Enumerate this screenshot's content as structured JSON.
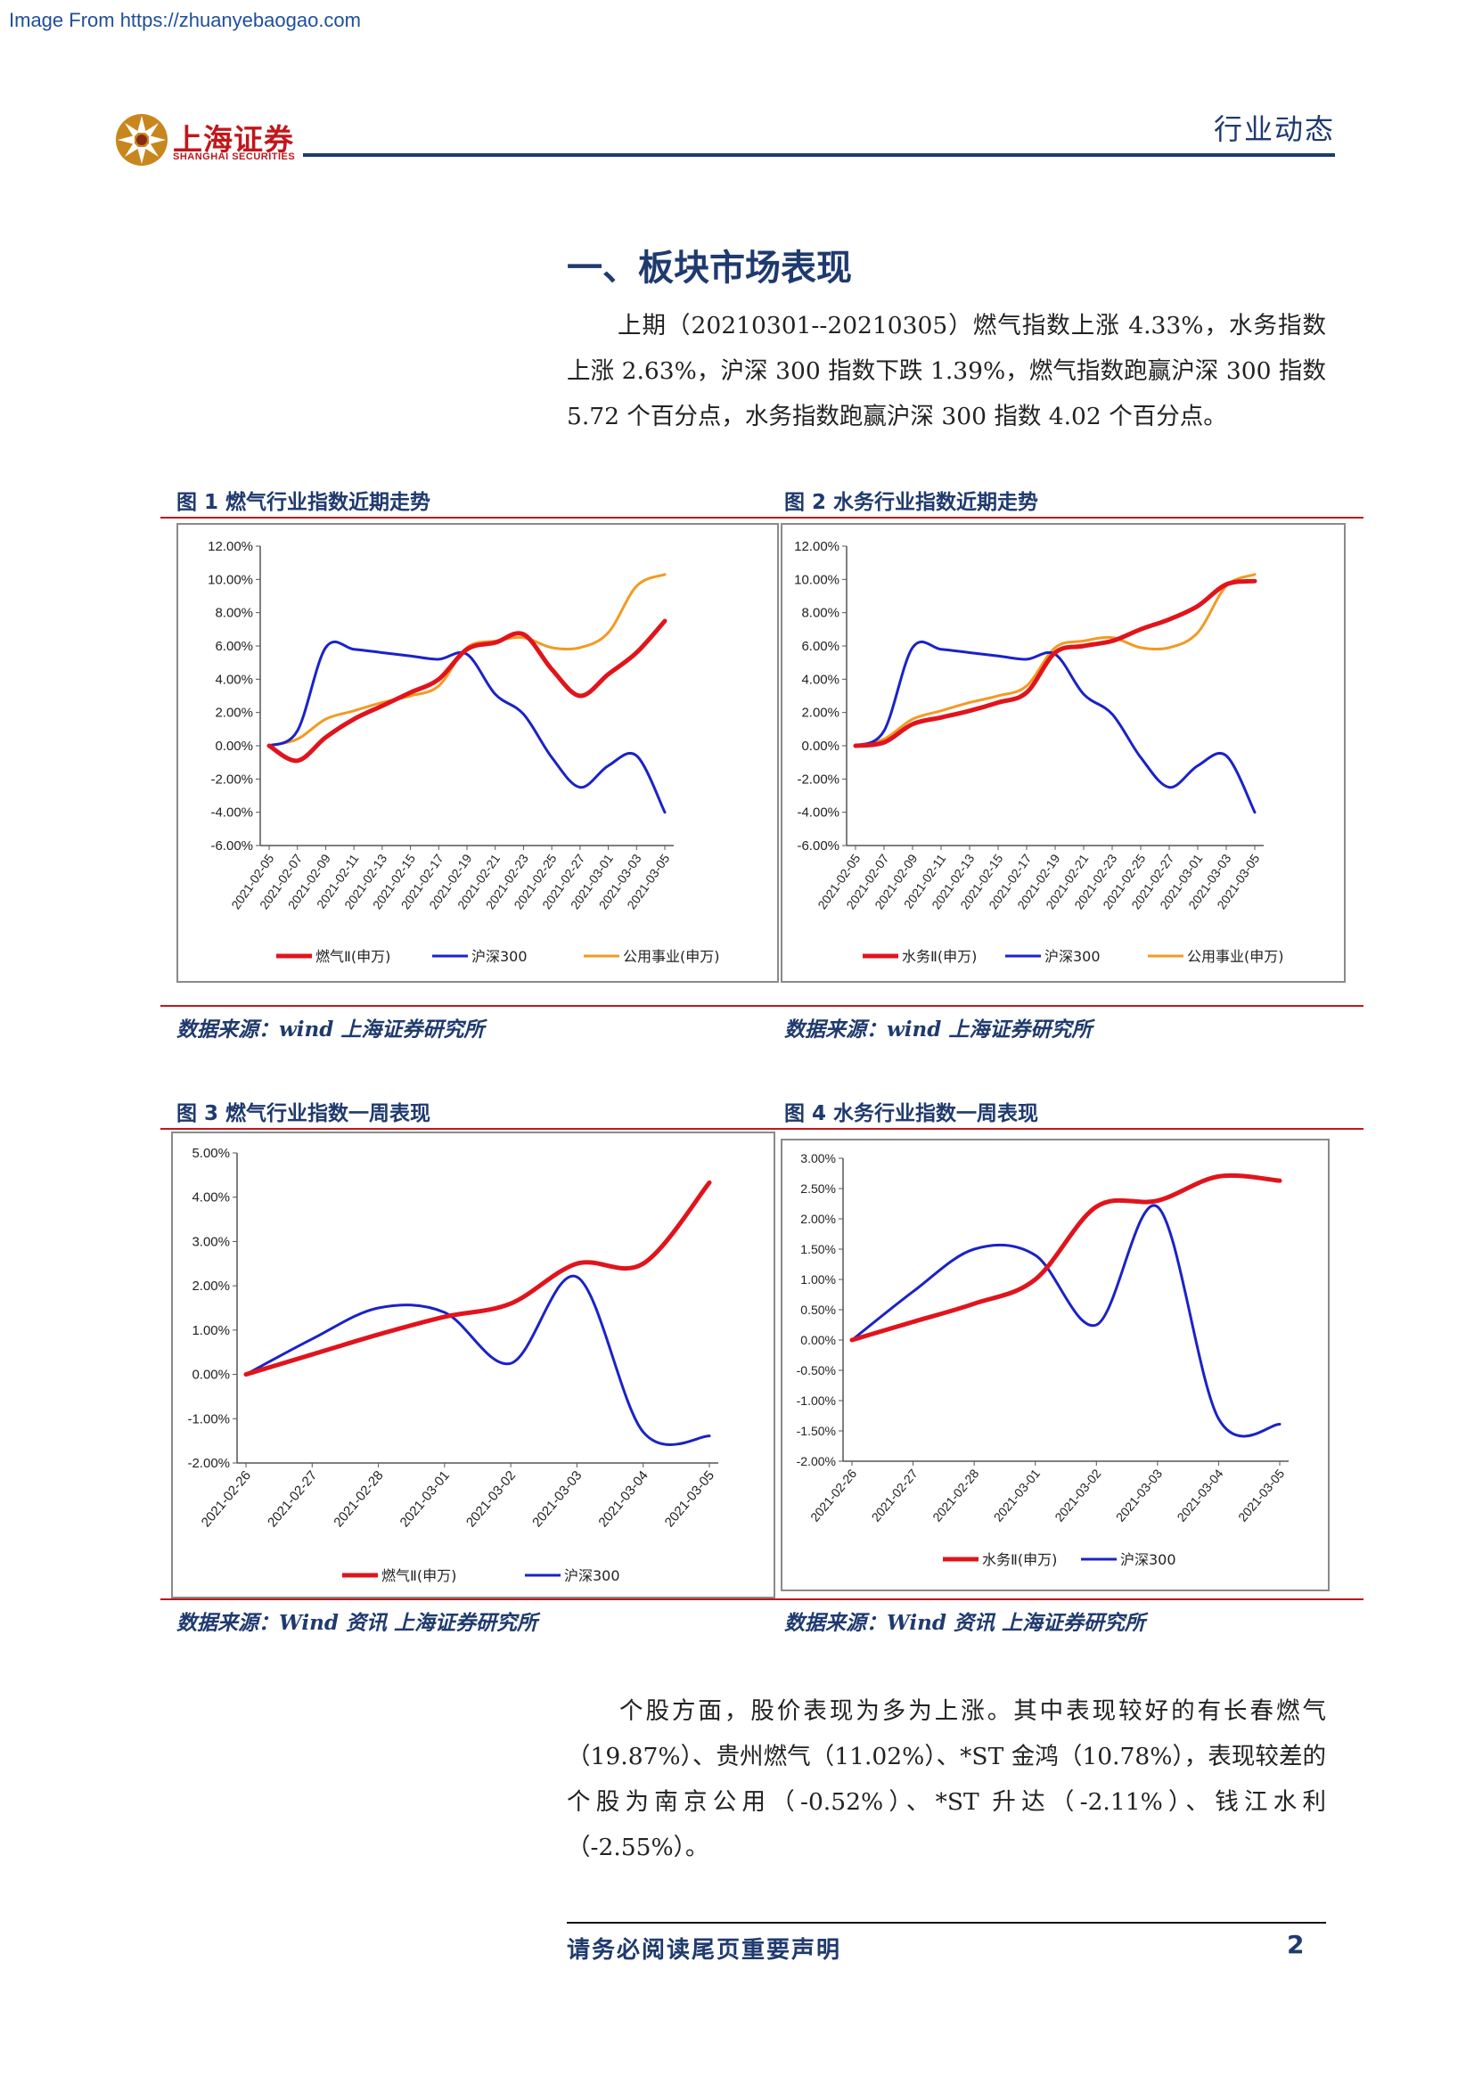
{
  "header": {
    "source_url": "Image From https://zhuanyebaogao.com",
    "logo_cn": "上海证券",
    "logo_en": "SHANGHAI SECURITIES",
    "doc_type": "行业动态"
  },
  "section": {
    "title": "一、板块市场表现",
    "para1": "上期（20210301--20210305）燃气指数上涨 4.33%，水务指数上涨 2.63%，沪深 300 指数下跌 1.39%，燃气指数跑赢沪深 300 指数 5.72 个百分点，水务指数跑赢沪深 300 指数 4.02 个百分点。",
    "para2": "个股方面，股价表现为多为上涨。其中表现较好的有长春燃气（19.87%）、贵州燃气（11.02%）、*ST 金鸿（10.78%），表现较差的个股为南京公用（-0.52%）、*ST 升达（-2.11%）、钱江水利（-2.55%）。"
  },
  "figures": {
    "fig1_title": "图 1 燃气行业指数近期走势",
    "fig2_title": "图 2 水务行业指数近期走势",
    "fig3_title": "图 3 燃气行业指数一周表现",
    "fig4_title": "图 4 水务行业指数一周表现",
    "source_top_left": "数据来源：wind 上海证券研究所",
    "source_top_right": "数据来源：wind 上海证券研究所",
    "source_bottom_left": "数据来源：Wind 资讯 上海证券研究所",
    "source_bottom_right": "数据来源：Wind 资讯 上海证券研究所"
  },
  "footer": {
    "notice": "请务必阅读尾页重要声明",
    "page": "2"
  },
  "colors": {
    "red": "#e0141c",
    "blue": "#1a22c8",
    "orange": "#f39a22",
    "navy": "#1f3a6e"
  },
  "chart_data": [
    {
      "type": "line",
      "x": [
        "2021-02-05",
        "2021-02-07",
        "2021-02-09",
        "2021-02-11",
        "2021-02-13",
        "2021-02-15",
        "2021-02-17",
        "2021-02-19",
        "2021-02-21",
        "2021-02-23",
        "2021-02-25",
        "2021-02-27",
        "2021-03-01",
        "2021-03-03",
        "2021-03-05"
      ],
      "ylim": [
        -6,
        12
      ],
      "yticks": [
        "12.00%",
        "10.00%",
        "8.00%",
        "6.00%",
        "4.00%",
        "2.00%",
        "0.00%",
        "-2.00%",
        "-4.00%",
        "-6.00%"
      ],
      "series": [
        {
          "name": "燃气Ⅱ(申万)",
          "color": "#e0141c",
          "values": [
            0,
            -0.9,
            0.5,
            1.6,
            2.4,
            3.2,
            4.0,
            5.8,
            6.2,
            6.7,
            4.6,
            3.0,
            4.3,
            5.6,
            7.5
          ]
        },
        {
          "name": "沪深300",
          "color": "#1a22c8",
          "values": [
            0,
            0.9,
            5.9,
            5.8,
            5.6,
            5.4,
            5.2,
            5.5,
            3.1,
            1.9,
            -0.7,
            -2.5,
            -1.2,
            -0.6,
            -4.0
          ]
        },
        {
          "name": "公用事业(申万)",
          "color": "#f39a22",
          "values": [
            0,
            0.4,
            1.6,
            2.1,
            2.6,
            3.0,
            3.6,
            5.9,
            6.3,
            6.5,
            5.9,
            5.9,
            6.8,
            9.6,
            10.3
          ]
        }
      ]
    },
    {
      "type": "line",
      "x": [
        "2021-02-05",
        "2021-02-07",
        "2021-02-09",
        "2021-02-11",
        "2021-02-13",
        "2021-02-15",
        "2021-02-17",
        "2021-02-19",
        "2021-02-21",
        "2021-02-23",
        "2021-02-25",
        "2021-02-27",
        "2021-03-01",
        "2021-03-03",
        "2021-03-05"
      ],
      "ylim": [
        -6,
        12
      ],
      "yticks": [
        "12.00%",
        "10.00%",
        "8.00%",
        "6.00%",
        "4.00%",
        "2.00%",
        "0.00%",
        "-2.00%",
        "-4.00%",
        "-6.00%"
      ],
      "series": [
        {
          "name": "水务Ⅱ(申万)",
          "color": "#e0141c",
          "values": [
            0,
            0.2,
            1.3,
            1.7,
            2.1,
            2.6,
            3.2,
            5.6,
            6.0,
            6.3,
            7.0,
            7.6,
            8.4,
            9.7,
            9.9
          ]
        },
        {
          "name": "沪深300",
          "color": "#1a22c8",
          "values": [
            0,
            0.9,
            5.9,
            5.8,
            5.6,
            5.4,
            5.2,
            5.5,
            3.1,
            1.9,
            -0.7,
            -2.5,
            -1.2,
            -0.6,
            -4.0
          ]
        },
        {
          "name": "公用事业(申万)",
          "color": "#f39a22",
          "values": [
            0,
            0.4,
            1.6,
            2.1,
            2.6,
            3.0,
            3.6,
            5.9,
            6.3,
            6.5,
            5.9,
            5.9,
            6.8,
            9.6,
            10.3
          ]
        }
      ]
    },
    {
      "type": "line",
      "x": [
        "2021-02-26",
        "2021-02-27",
        "2021-02-28",
        "2021-03-01",
        "2021-03-02",
        "2021-03-03",
        "2021-03-04",
        "2021-03-05"
      ],
      "ylim": [
        -2,
        5
      ],
      "yticks": [
        "5.00%",
        "4.00%",
        "3.00%",
        "2.00%",
        "1.00%",
        "0.00%",
        "-1.00%",
        "-2.00%"
      ],
      "series": [
        {
          "name": "燃气Ⅱ(申万)",
          "color": "#e0141c",
          "values": [
            0,
            0.45,
            0.9,
            1.3,
            1.6,
            2.5,
            2.5,
            4.33
          ]
        },
        {
          "name": "沪深300",
          "color": "#1a22c8",
          "values": [
            0,
            0.8,
            1.5,
            1.4,
            0.25,
            2.2,
            -1.3,
            -1.39
          ]
        }
      ]
    },
    {
      "type": "line",
      "x": [
        "2021-02-26",
        "2021-02-27",
        "2021-02-28",
        "2021-03-01",
        "2021-03-02",
        "2021-03-03",
        "2021-03-04",
        "2021-03-05"
      ],
      "ylim": [
        -2,
        3
      ],
      "yticks": [
        "3.00%",
        "2.50%",
        "2.00%",
        "1.50%",
        "1.00%",
        "0.50%",
        "0.00%",
        "-0.50%",
        "-1.00%",
        "-1.50%",
        "-2.00%"
      ],
      "series": [
        {
          "name": "水务Ⅱ(申万)",
          "color": "#e0141c",
          "values": [
            0,
            0.3,
            0.6,
            1.0,
            2.2,
            2.3,
            2.7,
            2.63
          ]
        },
        {
          "name": "沪深300",
          "color": "#1a22c8",
          "values": [
            0,
            0.8,
            1.5,
            1.4,
            0.25,
            2.2,
            -1.3,
            -1.39
          ]
        }
      ]
    }
  ]
}
